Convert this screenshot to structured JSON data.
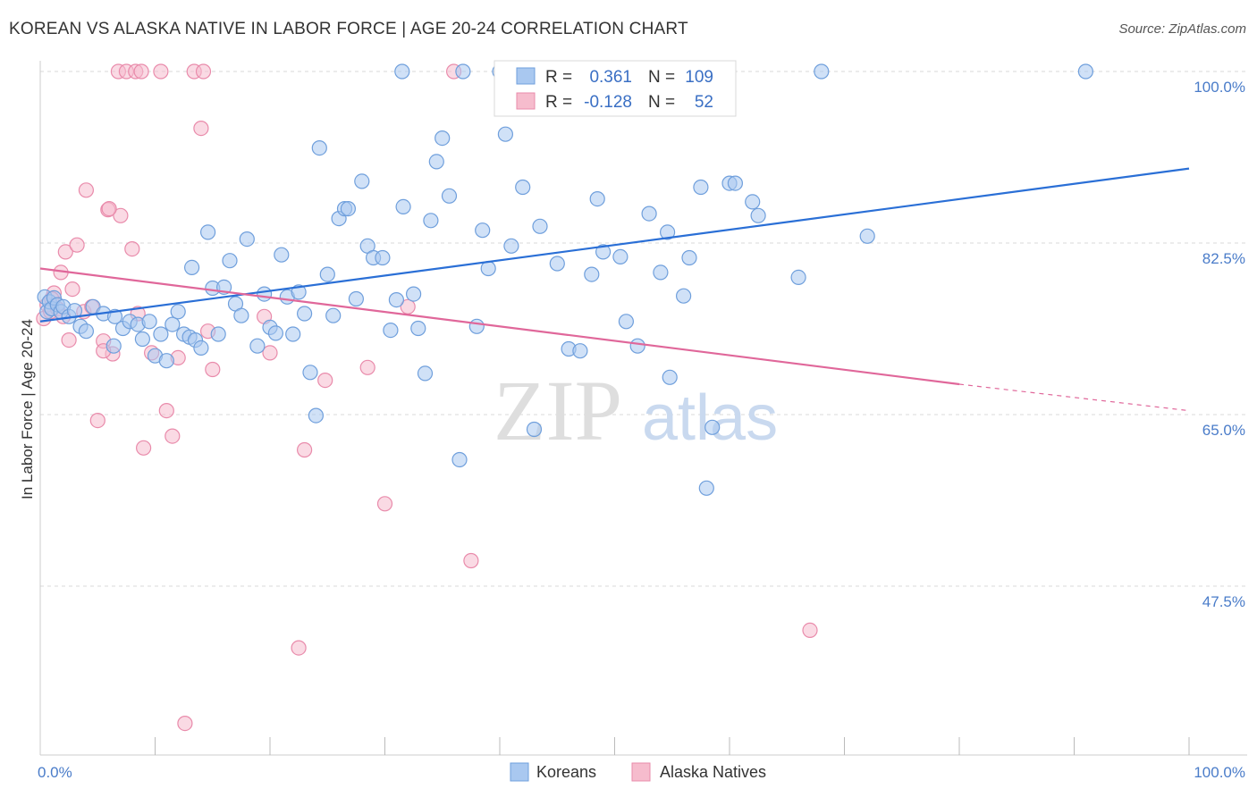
{
  "title": "KOREAN VS ALASKA NATIVE IN LABOR FORCE | AGE 20-24 CORRELATION CHART",
  "source": "Source: ZipAtlas.com",
  "watermark": {
    "zip": "ZIP",
    "atlas": "atlas"
  },
  "colors": {
    "blue_fill": "#a9c8f0",
    "blue_stroke": "#6f9fdc",
    "blue_line": "#2a6fd6",
    "pink_fill": "#f6bccd",
    "pink_stroke": "#e98bab",
    "pink_line": "#e0679a",
    "tick_text": "#4a7cc9",
    "grid": "#d8d8d8"
  },
  "stats_box": {
    "rows": [
      {
        "r_label": "R =",
        "r_value": "0.361",
        "n_label": "N =",
        "n_value": "109"
      },
      {
        "r_label": "R =",
        "r_value": "-0.128",
        "n_label": "N =",
        "n_value": "52"
      }
    ]
  },
  "chart_data": {
    "type": "scatter",
    "title": "KOREAN VS ALASKA NATIVE IN LABOR FORCE | AGE 20-24 CORRELATION CHART",
    "xlabel": "",
    "ylabel": "In Labor Force | Age 20-24",
    "xlim": [
      0,
      100
    ],
    "ylim": [
      32,
      101
    ],
    "x_tick_labels": [
      "0.0%",
      "100.0%"
    ],
    "y_ticks": [
      47.5,
      65.0,
      82.5,
      100.0
    ],
    "y_tick_labels": [
      "47.5%",
      "65.0%",
      "82.5%",
      "100.0%"
    ],
    "grid": true,
    "legend_position": "bottom-center",
    "series": [
      {
        "name": "Koreans",
        "r": 0.361,
        "n": 109,
        "trend": {
          "x": [
            0,
            100
          ],
          "y": [
            74.5,
            90.1
          ]
        },
        "points": [
          [
            0.4,
            77.0
          ],
          [
            0.6,
            75.5
          ],
          [
            0.8,
            76.5
          ],
          [
            1.0,
            75.8
          ],
          [
            1.2,
            76.9
          ],
          [
            1.5,
            76.2
          ],
          [
            1.8,
            75.5
          ],
          [
            2.0,
            76.0
          ],
          [
            2.5,
            75.0
          ],
          [
            3.0,
            75.6
          ],
          [
            3.5,
            74.0
          ],
          [
            4.0,
            73.5
          ],
          [
            4.6,
            76.0
          ],
          [
            5.5,
            75.3
          ],
          [
            6.5,
            75.0
          ],
          [
            7.2,
            73.8
          ],
          [
            6.4,
            72.0
          ],
          [
            7.8,
            74.5
          ],
          [
            8.5,
            74.2
          ],
          [
            8.9,
            72.7
          ],
          [
            9.5,
            74.5
          ],
          [
            10.0,
            71.0
          ],
          [
            10.5,
            73.2
          ],
          [
            11.0,
            70.5
          ],
          [
            11.5,
            74.2
          ],
          [
            12.0,
            75.5
          ],
          [
            12.5,
            73.2
          ],
          [
            13.0,
            72.9
          ],
          [
            13.5,
            72.6
          ],
          [
            14.0,
            71.8
          ],
          [
            14.6,
            83.6
          ],
          [
            13.2,
            80.0
          ],
          [
            15.0,
            77.9
          ],
          [
            15.5,
            73.2
          ],
          [
            16.0,
            78.0
          ],
          [
            16.5,
            80.7
          ],
          [
            17.0,
            76.3
          ],
          [
            17.5,
            75.1
          ],
          [
            18.0,
            82.9
          ],
          [
            18.9,
            72.0
          ],
          [
            19.5,
            77.3
          ],
          [
            20.0,
            73.9
          ],
          [
            20.5,
            73.3
          ],
          [
            21.0,
            81.3
          ],
          [
            21.5,
            77.0
          ],
          [
            22.0,
            73.2
          ],
          [
            22.5,
            77.5
          ],
          [
            23.0,
            75.3
          ],
          [
            23.5,
            69.3
          ],
          [
            24.0,
            64.9
          ],
          [
            24.3,
            92.2
          ],
          [
            25.0,
            79.3
          ],
          [
            25.5,
            75.1
          ],
          [
            26.0,
            85.0
          ],
          [
            26.5,
            86.0
          ],
          [
            26.8,
            86.0
          ],
          [
            27.5,
            76.8
          ],
          [
            28.0,
            88.8
          ],
          [
            28.5,
            82.2
          ],
          [
            29.0,
            81.0
          ],
          [
            29.8,
            81.0
          ],
          [
            30.5,
            73.6
          ],
          [
            31.0,
            76.7
          ],
          [
            31.6,
            86.2
          ],
          [
            32.5,
            77.3
          ],
          [
            32.9,
            73.8
          ],
          [
            33.5,
            69.2
          ],
          [
            34.0,
            84.8
          ],
          [
            34.5,
            90.8
          ],
          [
            35.0,
            93.2
          ],
          [
            35.6,
            87.3
          ],
          [
            36.5,
            60.4
          ],
          [
            38.0,
            74.0
          ],
          [
            38.5,
            83.8
          ],
          [
            39.0,
            79.9
          ],
          [
            40.5,
            93.6
          ],
          [
            41.0,
            82.2
          ],
          [
            42.0,
            88.2
          ],
          [
            43.0,
            63.5
          ],
          [
            43.5,
            84.2
          ],
          [
            45.0,
            80.4
          ],
          [
            46.0,
            71.7
          ],
          [
            47.0,
            71.5
          ],
          [
            48.0,
            79.3
          ],
          [
            48.5,
            87.0
          ],
          [
            49.0,
            81.6
          ],
          [
            50.5,
            81.1
          ],
          [
            51.0,
            74.5
          ],
          [
            52.0,
            72.0
          ],
          [
            53.0,
            85.5
          ],
          [
            54.0,
            79.5
          ],
          [
            54.6,
            83.6
          ],
          [
            54.8,
            68.8
          ],
          [
            56.0,
            77.1
          ],
          [
            56.5,
            81.0
          ],
          [
            57.5,
            88.2
          ],
          [
            58.5,
            63.7
          ],
          [
            58.0,
            57.5
          ],
          [
            60.0,
            88.6
          ],
          [
            60.5,
            88.6
          ],
          [
            62.0,
            86.7
          ],
          [
            62.5,
            85.3
          ],
          [
            66.0,
            79.0
          ],
          [
            68.0,
            100.0
          ],
          [
            72.0,
            83.2
          ],
          [
            91.0,
            100.0
          ],
          [
            40.0,
            100.0
          ],
          [
            31.5,
            100.0
          ],
          [
            36.8,
            100.0
          ]
        ]
      },
      {
        "name": "Alaska Natives",
        "r": -0.128,
        "n": 52,
        "trend": {
          "x": [
            0,
            80
          ],
          "y": [
            79.9,
            68.1
          ]
        },
        "trend_dashed": {
          "x": [
            80,
            100
          ],
          "y": [
            68.1,
            65.4
          ]
        },
        "points": [
          [
            0.3,
            74.8
          ],
          [
            0.6,
            76.2
          ],
          [
            0.9,
            75.5
          ],
          [
            1.2,
            77.4
          ],
          [
            1.5,
            75.8
          ],
          [
            1.8,
            79.5
          ],
          [
            2.2,
            81.6
          ],
          [
            2.5,
            72.6
          ],
          [
            2.8,
            77.8
          ],
          [
            3.2,
            82.3
          ],
          [
            3.8,
            75.5
          ],
          [
            4.0,
            87.9
          ],
          [
            4.5,
            76.0
          ],
          [
            5.0,
            64.4
          ],
          [
            5.5,
            72.5
          ],
          [
            5.9,
            85.9
          ],
          [
            6.3,
            71.2
          ],
          [
            6.8,
            100.0
          ],
          [
            7.0,
            85.3
          ],
          [
            7.5,
            100.0
          ],
          [
            8.0,
            81.9
          ],
          [
            8.3,
            100.0
          ],
          [
            8.8,
            100.0
          ],
          [
            9.0,
            61.6
          ],
          [
            9.7,
            71.3
          ],
          [
            10.5,
            100.0
          ],
          [
            11.0,
            65.4
          ],
          [
            11.5,
            62.8
          ],
          [
            12.0,
            70.8
          ],
          [
            13.4,
            100.0
          ],
          [
            14.0,
            94.2
          ],
          [
            14.2,
            100.0
          ],
          [
            14.6,
            73.5
          ],
          [
            15.0,
            69.6
          ],
          [
            19.5,
            75.0
          ],
          [
            20.0,
            71.3
          ],
          [
            22.5,
            41.2
          ],
          [
            23.0,
            61.4
          ],
          [
            24.8,
            68.5
          ],
          [
            28.5,
            69.8
          ],
          [
            30.0,
            55.9
          ],
          [
            32.0,
            76.0
          ],
          [
            36.0,
            100.0
          ],
          [
            37.5,
            50.1
          ],
          [
            44.0,
            100.0
          ],
          [
            67.0,
            43.0
          ],
          [
            12.6,
            33.5
          ],
          [
            5.5,
            71.5
          ],
          [
            2.0,
            75.0
          ],
          [
            1.0,
            76.8
          ],
          [
            6.0,
            86.0
          ],
          [
            8.5,
            75.3
          ]
        ]
      }
    ]
  },
  "legend": {
    "items": [
      {
        "label": "Koreans",
        "color": "#a9c8f0"
      },
      {
        "label": "Alaska Natives",
        "color": "#f6bccd"
      }
    ]
  }
}
